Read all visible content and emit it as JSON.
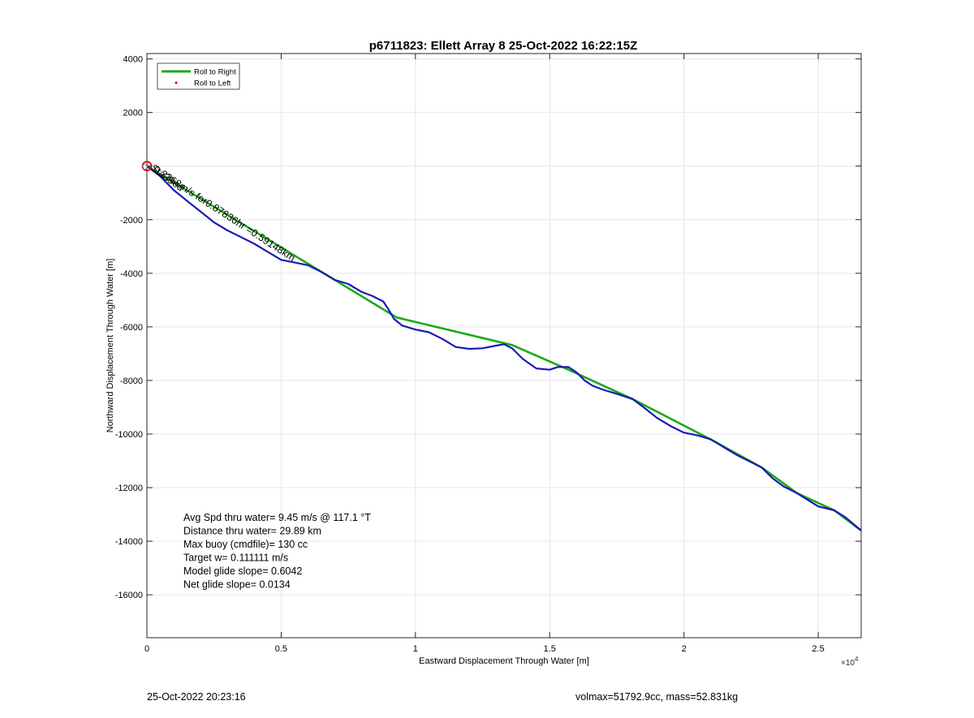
{
  "chart_data": {
    "type": "line",
    "title": "p6711823: Ellett Array 8 25-Oct-2022 16:22:15Z",
    "xlabel": "Eastward Displacement Through Water [m]",
    "ylabel": "Northward Displacement Through Water [m]",
    "x_multiplier_label": "×10",
    "x_multiplier_exponent": "4",
    "xlim": [
      0,
      26600
    ],
    "ylim": [
      -17600,
      4200
    ],
    "x_ticks": [
      0,
      5000,
      10000,
      15000,
      20000,
      25000
    ],
    "x_tick_labels": [
      "0",
      "0.5",
      "1",
      "1.5",
      "2",
      "2.5"
    ],
    "y_ticks": [
      4000,
      2000,
      0,
      -2000,
      -4000,
      -6000,
      -8000,
      -10000,
      -12000,
      -14000,
      -16000
    ],
    "y_tick_labels": [
      "4000",
      "2000",
      "",
      "-2000",
      "-4000",
      "-6000",
      "-8000",
      "-10000",
      "-12000",
      "-14000",
      "-16000"
    ],
    "grid": true,
    "legend_placement": "top-left",
    "legend": [
      {
        "label": "Roll to Right",
        "color": "#1aaa1a",
        "style": "line"
      },
      {
        "label": "Roll to Left",
        "color": "#e00000",
        "style": "dot"
      }
    ],
    "series": [
      {
        "name": "Roll to Right",
        "color": "#1aaa1a",
        "x": [
          0,
          9300,
          13600,
          15700,
          18100,
          21000,
          22900,
          24200,
          25600,
          26600
        ],
        "y": [
          0,
          -5650,
          -6680,
          -7600,
          -8700,
          -10200,
          -11250,
          -12200,
          -12850,
          -13600
        ]
      },
      {
        "color": "#1a1ab4",
        "x": [
          0,
          500,
          1000,
          1500,
          2000,
          2500,
          3000,
          3500,
          4000,
          4500,
          5000,
          5500,
          6000,
          6500,
          7000,
          7500,
          8000,
          8400,
          8800,
          9000,
          9200,
          9500,
          10000,
          10500,
          11000,
          11500,
          12000,
          12500,
          13000,
          13300,
          13600,
          14000,
          14500,
          15000,
          15300,
          15700,
          16000,
          16300,
          16600,
          17000,
          17500,
          18100,
          18500,
          19000,
          19500,
          20000,
          20500,
          21000,
          21500,
          22000,
          22500,
          22900,
          23300,
          23700,
          24200,
          24600,
          25000,
          25600,
          26000,
          26300,
          26600
        ],
        "y": [
          0,
          -380,
          -900,
          -1300,
          -1700,
          -2100,
          -2400,
          -2650,
          -2900,
          -3200,
          -3500,
          -3600,
          -3700,
          -3950,
          -4250,
          -4400,
          -4700,
          -4850,
          -5050,
          -5350,
          -5700,
          -5950,
          -6100,
          -6200,
          -6450,
          -6750,
          -6820,
          -6800,
          -6700,
          -6650,
          -6800,
          -7200,
          -7550,
          -7600,
          -7500,
          -7500,
          -7700,
          -8000,
          -8200,
          -8350,
          -8500,
          -8700,
          -9000,
          -9400,
          -9700,
          -9950,
          -10050,
          -10200,
          -10500,
          -10800,
          -11050,
          -11250,
          -11650,
          -11950,
          -12200,
          -12450,
          -12700,
          -12850,
          -13100,
          -13350,
          -13600
        ]
      }
    ],
    "start_marker": {
      "x": 0,
      "y": 0,
      "color": "#e00000"
    },
    "rotated_annotation": "0.3368m/s for0.87836hr =0.59148km",
    "overlap_annotation": "Sta39ed",
    "stats_lines": [
      "Avg Spd thru water=  9.45 m/s @ 117.1 °T",
      "Distance thru water= 29.89 km",
      "Max buoy (cmdfile)= 130 cc",
      "Target w= 0.111111 m/s",
      "Model glide slope= 0.6042",
      "Net glide slope= 0.0134"
    ]
  },
  "footer": {
    "left": "25-Oct-2022 20:23:16",
    "right": "volmax=51792.9cc, mass=52.831kg"
  }
}
